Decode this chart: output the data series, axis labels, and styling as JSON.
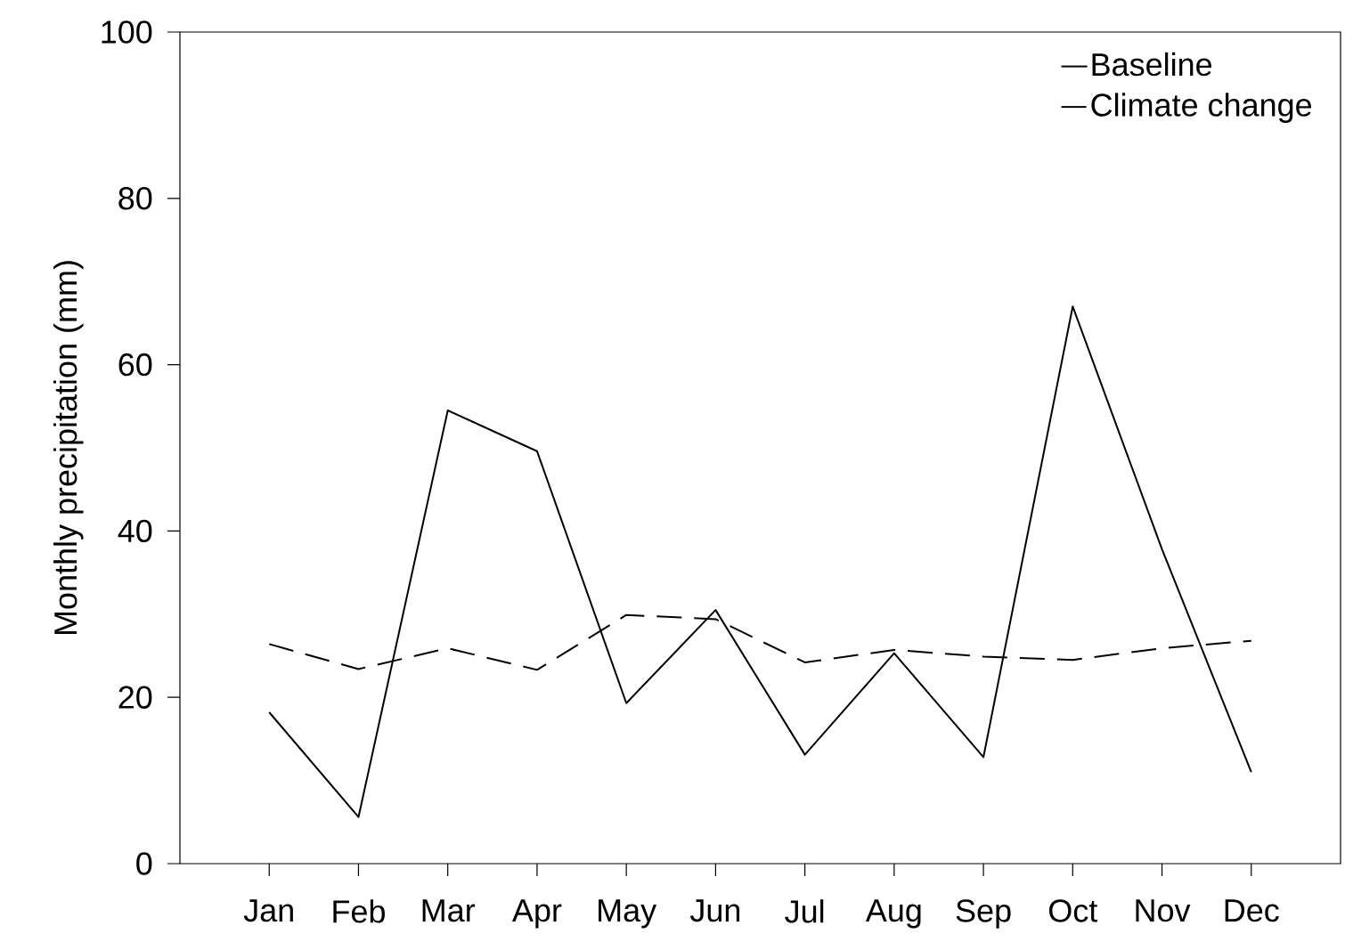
{
  "chart_data": {
    "type": "line",
    "ylabel": "Monthly precipitation (mm)",
    "categories": [
      "Jan",
      "Feb",
      "Mar",
      "Apr",
      "May",
      "Jun",
      "Jul",
      "Aug",
      "Sep",
      "Oct",
      "Nov",
      "Dec"
    ],
    "series": [
      {
        "name": "Baseline",
        "color": "#000000",
        "line_style": "solid",
        "values": [
          18.2,
          5.6,
          54.5,
          49.6,
          19.3,
          30.5,
          13.1,
          25.3,
          12.8,
          67.0,
          37.8,
          11.0
        ]
      },
      {
        "name": "Climate change",
        "color": "#000000",
        "line_style": "dashed",
        "values": [
          26.4,
          23.4,
          25.9,
          23.3,
          29.9,
          29.4,
          24.2,
          25.7,
          24.9,
          24.5,
          25.9,
          26.8
        ]
      }
    ],
    "ylim": [
      0,
      100
    ],
    "yticks": [
      0,
      20,
      40,
      60,
      80,
      100
    ],
    "legend": "top right"
  }
}
